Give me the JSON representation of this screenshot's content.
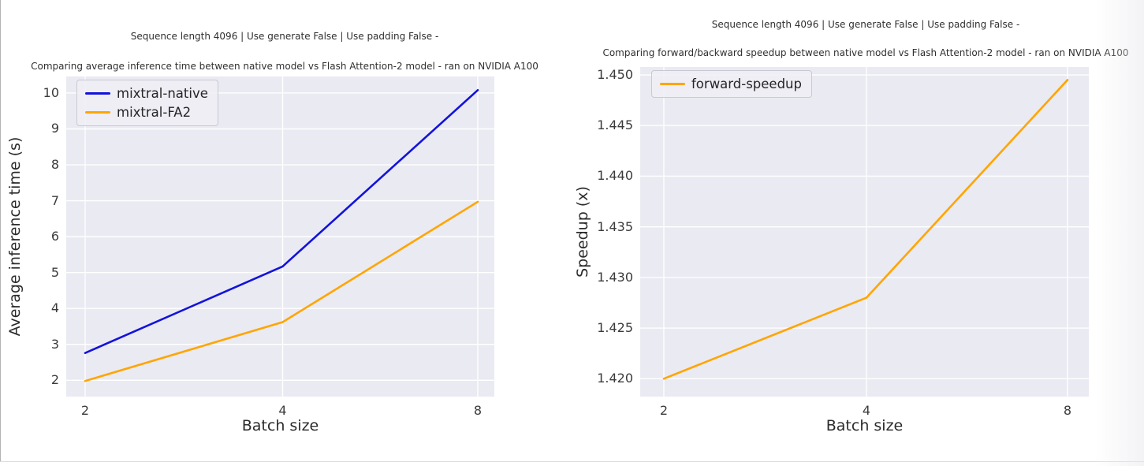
{
  "page": {
    "background": "#ffffff",
    "description_left_chart": "average inference time line chart",
    "description_right_chart": "forward speedup line chart"
  },
  "colors": {
    "plot_background": "#eaeaf2",
    "grid": "#ffffff",
    "blue_line": "#1313db",
    "orange_line": "#ffa500",
    "text": "#262626"
  },
  "chart_data": [
    {
      "type": "line",
      "suptitle": "Sequence length 4096 | Use generate False | Use padding False -",
      "title": "Comparing average inference time between native model vs Flash Attention-2 model - ran on NVIDIA A100",
      "xlabel": "Batch size",
      "ylabel": "Average inference time (s)",
      "x": [
        2,
        4,
        8
      ],
      "x_tick_labels": [
        "2",
        "4",
        "8"
      ],
      "xscale": "log2-evenly-spaced",
      "series": [
        {
          "name": "mixtral-native",
          "color": "#1313db",
          "values": [
            2.76,
            5.17,
            10.08
          ]
        },
        {
          "name": "mixtral-FA2",
          "color": "#ffa500",
          "values": [
            1.98,
            3.62,
            6.97
          ]
        }
      ],
      "y_ticks": [
        2,
        3,
        4,
        5,
        6,
        7,
        8,
        9,
        10
      ],
      "y_tick_labels": [
        "2",
        "3",
        "4",
        "5",
        "6",
        "7",
        "8",
        "9",
        "10"
      ],
      "ylim": [
        1.545,
        10.46
      ],
      "grid": true,
      "legend_position": "upper left",
      "plot_bg": "#eaeaf2",
      "grid_color": "#ffffff"
    },
    {
      "type": "line",
      "suptitle": "Sequence length 4096 | Use generate False | Use padding False -",
      "title": "Comparing forward/backward speedup between native model vs Flash Attention-2 model - ran on NVIDIA A100",
      "xlabel": "Batch size",
      "ylabel": "Speedup (x)",
      "x": [
        2,
        4,
        8
      ],
      "x_tick_labels": [
        "2",
        "4",
        "8"
      ],
      "xscale": "log2-evenly-spaced",
      "series": [
        {
          "name": "forward-speedup",
          "color": "#ffa500",
          "values": [
            1.42,
            1.428,
            1.4495
          ]
        }
      ],
      "y_ticks": [
        1.42,
        1.425,
        1.43,
        1.435,
        1.44,
        1.445,
        1.45
      ],
      "y_tick_labels": [
        "1.420",
        "1.425",
        "1.430",
        "1.435",
        "1.440",
        "1.445",
        "1.450"
      ],
      "ylim": [
        1.41823,
        1.45078
      ],
      "grid": true,
      "legend_position": "upper left",
      "plot_bg": "#eaeaf2",
      "grid_color": "#ffffff"
    }
  ]
}
